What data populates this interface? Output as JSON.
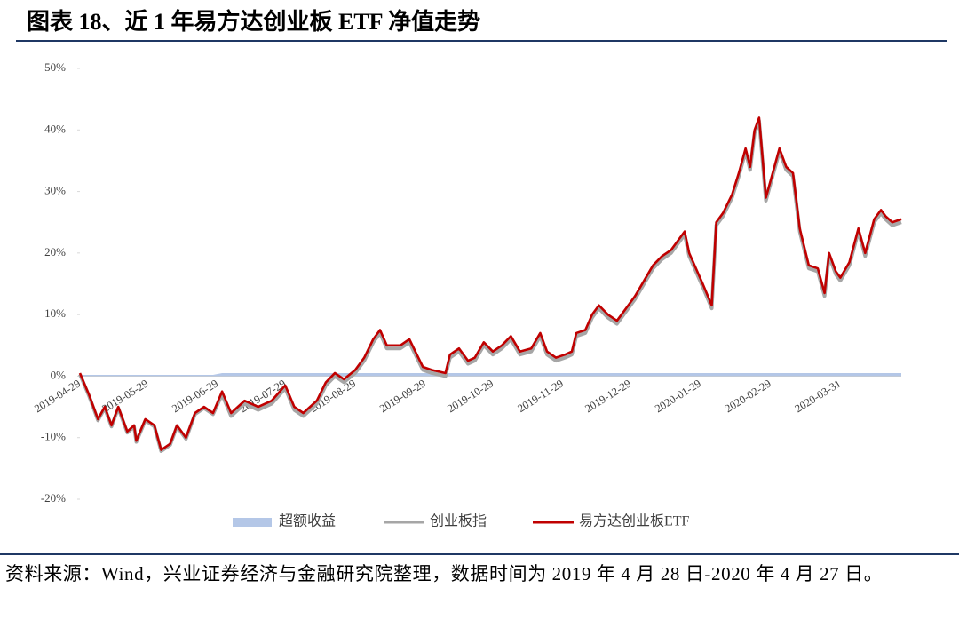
{
  "chart_data": {
    "type": "line",
    "title": "图表 18、近 1 年易方达创业板 ETF 净值走势",
    "note": "资料来源：Wind，兴业证券经济与金融研究院整理，数据时间为 2019 年 4 月 28 日-2020 年 4 月 27 日。",
    "x": [
      "2019-04-29",
      "2019-05-03",
      "2019-05-07",
      "2019-05-10",
      "2019-05-13",
      "2019-05-16",
      "2019-05-20",
      "2019-05-23",
      "2019-05-24",
      "2019-05-28",
      "2019-06-01",
      "2019-06-04",
      "2019-06-08",
      "2019-06-11",
      "2019-06-15",
      "2019-06-19",
      "2019-06-23",
      "2019-06-27",
      "2019-07-01",
      "2019-07-05",
      "2019-07-11",
      "2019-07-17",
      "2019-07-23",
      "2019-07-29",
      "2019-08-02",
      "2019-08-06",
      "2019-08-12",
      "2019-08-16",
      "2019-08-20",
      "2019-08-24",
      "2019-08-29",
      "2019-09-02",
      "2019-09-06",
      "2019-09-09",
      "2019-09-12",
      "2019-09-18",
      "2019-09-22",
      "2019-09-26",
      "2019-09-28",
      "2019-10-02",
      "2019-10-08",
      "2019-10-10",
      "2019-10-14",
      "2019-10-18",
      "2019-10-21",
      "2019-10-25",
      "2019-10-29",
      "2019-11-02",
      "2019-11-06",
      "2019-11-10",
      "2019-11-15",
      "2019-11-19",
      "2019-11-22",
      "2019-11-26",
      "2019-11-30",
      "2019-12-03",
      "2019-12-05",
      "2019-12-09",
      "2019-12-12",
      "2019-12-15",
      "2019-12-19",
      "2019-12-23",
      "2019-12-27",
      "2019-12-31",
      "2020-01-04",
      "2020-01-08",
      "2020-01-12",
      "2020-01-16",
      "2020-01-20",
      "2020-01-22",
      "2020-01-24",
      "2020-01-30",
      "2020-02-03",
      "2020-02-05",
      "2020-02-08",
      "2020-02-12",
      "2020-02-15",
      "2020-02-18",
      "2020-02-20",
      "2020-02-22",
      "2020-02-24",
      "2020-02-27",
      "2020-03-01",
      "2020-03-04",
      "2020-03-07",
      "2020-03-10",
      "2020-03-13",
      "2020-03-17",
      "2020-03-21",
      "2020-03-24",
      "2020-03-26",
      "2020-03-29",
      "2020-03-31",
      "2020-04-04",
      "2020-04-08",
      "2020-04-11",
      "2020-04-15",
      "2020-04-18",
      "2020-04-20",
      "2020-04-23",
      "2020-04-27"
    ],
    "series": [
      {
        "name": "超额收益",
        "color": "#b4c7e7",
        "kind": "area",
        "values": [
          0.2,
          0.2,
          0.2,
          0.2,
          0.2,
          0.2,
          0.2,
          0.2,
          0.2,
          0.2,
          0.2,
          0.2,
          0.2,
          0.2,
          0.2,
          0.2,
          0.2,
          0.2,
          0.5,
          0.5,
          0.5,
          0.5,
          0.5,
          0.5,
          0.5,
          0.5,
          0.5,
          0.5,
          0.5,
          0.5,
          0.5,
          0.5,
          0.5,
          0.5,
          0.5,
          0.5,
          0.5,
          0.5,
          0.5,
          0.5,
          0.5,
          0.5,
          0.5,
          0.5,
          0.5,
          0.5,
          0.5,
          0.5,
          0.5,
          0.5,
          0.5,
          0.5,
          0.5,
          0.5,
          0.5,
          0.5,
          0.5,
          0.5,
          0.5,
          0.5,
          0.5,
          0.5,
          0.5,
          0.5,
          0.5,
          0.5,
          0.5,
          0.5,
          0.5,
          0.5,
          0.5,
          0.5,
          0.5,
          0.5,
          0.5,
          0.5,
          0.5,
          0.5,
          0.5,
          0.5,
          0.5,
          0.5,
          0.5,
          0.5,
          0.5,
          0.5,
          0.5,
          0.5,
          0.5,
          0.5,
          0.5,
          0.5,
          0.5,
          0.5,
          0.5,
          0.5,
          0.5,
          0.5,
          0.5,
          0.5,
          0.5
        ]
      },
      {
        "name": "创业板指",
        "color": "#a6a6a6",
        "kind": "line",
        "values": [
          0.3,
          -3.2,
          -7.2,
          -5.2,
          -8.2,
          -5.2,
          -9.2,
          -8.2,
          -10.7,
          -7.2,
          -8.2,
          -12.2,
          -11.2,
          -8.2,
          -10.2,
          -6.2,
          -5.2,
          -6.2,
          -3,
          -6.5,
          -4.5,
          -5.5,
          -4.5,
          -2,
          -5.5,
          -6.5,
          -4.5,
          -1.5,
          0,
          -1,
          0.5,
          2.5,
          5.5,
          7,
          4.5,
          4.5,
          5.5,
          2.5,
          1,
          0.5,
          0,
          3,
          4,
          2,
          2.5,
          5,
          3.5,
          4.5,
          6,
          3.5,
          4,
          6.5,
          3.5,
          2.5,
          3,
          3.5,
          6.5,
          7,
          9.5,
          11,
          9.5,
          8.5,
          10.5,
          12.5,
          15,
          17.5,
          19,
          20,
          22,
          23,
          19.5,
          14.5,
          11,
          24.5,
          26,
          29,
          32.5,
          36.5,
          33.5,
          39.5,
          41.5,
          28.5,
          32.5,
          36.5,
          33.5,
          32.5,
          23.5,
          17.5,
          17,
          13,
          19.5,
          16.5,
          15.5,
          18,
          23.5,
          19.5,
          25,
          26.5,
          25.5,
          24.5,
          25
        ]
      },
      {
        "name": "易方达创业板ETF",
        "color": "#c00000",
        "kind": "line",
        "values": [
          0.5,
          -3,
          -7,
          -5,
          -8,
          -5,
          -9,
          -8,
          -10.5,
          -7,
          -8,
          -12,
          -11,
          -8,
          -10,
          -6,
          -5,
          -6,
          -2.5,
          -6,
          -4,
          -5,
          -4,
          -1.5,
          -5,
          -6,
          -4,
          -1,
          0.5,
          -0.5,
          1,
          3,
          6,
          7.5,
          5,
          5,
          6,
          3,
          1.5,
          1,
          0.5,
          3.5,
          4.5,
          2.5,
          3,
          5.5,
          4,
          5,
          6.5,
          4,
          4.5,
          7,
          4,
          3,
          3.5,
          4,
          7,
          7.5,
          10,
          11.5,
          10,
          9,
          11,
          13,
          15.5,
          18,
          19.5,
          20.5,
          22.5,
          23.5,
          20,
          15,
          11.5,
          25,
          26.5,
          29.5,
          33,
          37,
          34,
          40,
          42,
          29,
          33,
          37,
          34,
          33,
          24,
          18,
          17.5,
          13.5,
          20,
          17,
          16,
          18.5,
          24,
          20,
          25.5,
          27,
          26,
          25,
          25.5
        ]
      }
    ],
    "xlim": [
      "2019-04-29",
      "2020-04-27"
    ],
    "xticks": [
      "2019-04-29",
      "2019-05-29",
      "2019-06-29",
      "2019-07-29",
      "2019-08-29",
      "2019-09-29",
      "2019-10-29",
      "2019-11-29",
      "2019-12-29",
      "2020-01-29",
      "2020-02-29",
      "2020-03-31"
    ],
    "ylim": [
      -20,
      50
    ],
    "yticks": [
      {
        "value": -20,
        "label": "-20%"
      },
      {
        "value": -10,
        "label": "-10%"
      },
      {
        "value": 0,
        "label": "0%"
      },
      {
        "value": 10,
        "label": "10%"
      },
      {
        "value": 20,
        "label": "20%"
      },
      {
        "value": 30,
        "label": "30%"
      },
      {
        "value": 40,
        "label": "40%"
      },
      {
        "value": 50,
        "label": "50%"
      }
    ],
    "grid": false,
    "legend": "bottom"
  }
}
